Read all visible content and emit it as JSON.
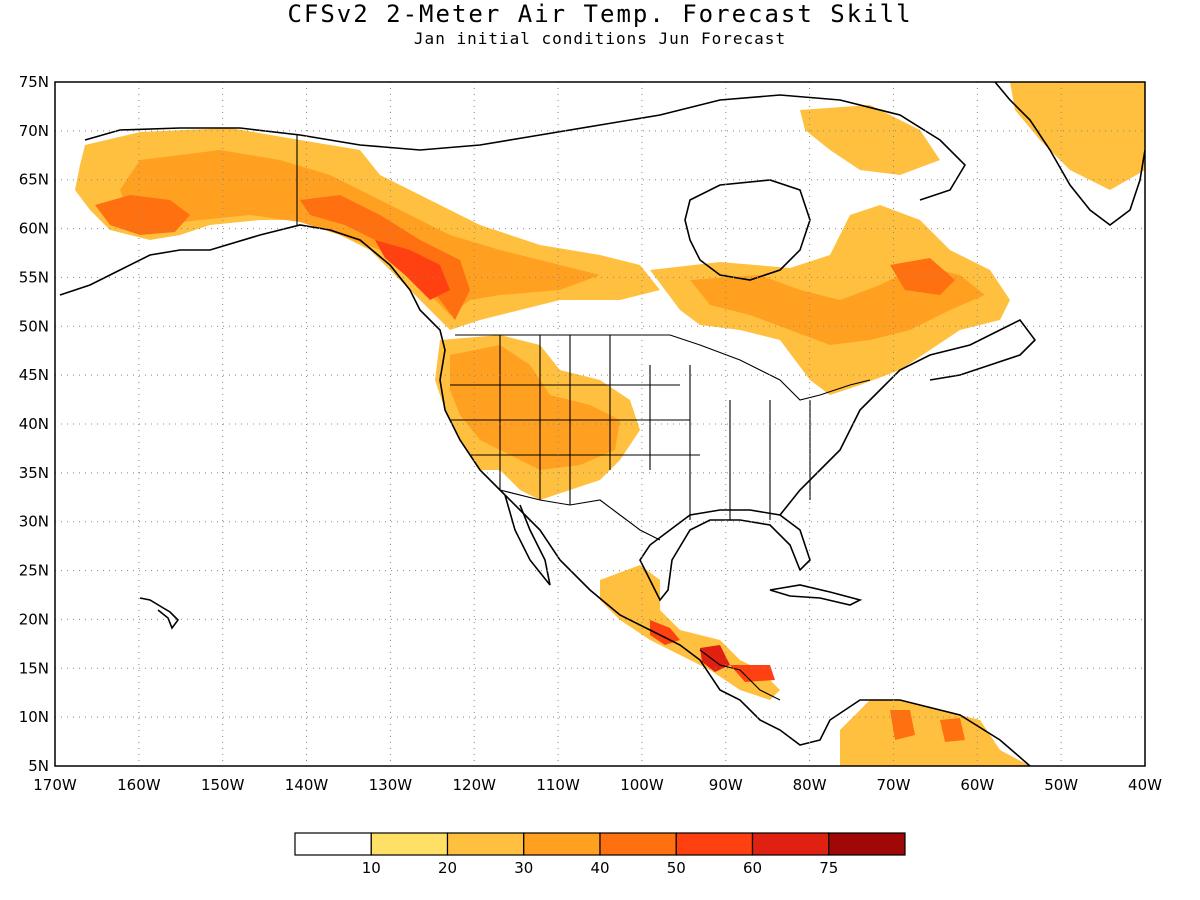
{
  "title": "CFSv2 2-Meter Air Temp. Forecast Skill",
  "subtitle": "Jan initial conditions   Jun Forecast",
  "map": {
    "lon_range": [
      -170,
      -40
    ],
    "lat_range": [
      5,
      75
    ],
    "grid": true,
    "lat_ticks": [
      "75N",
      "70N",
      "65N",
      "60N",
      "55N",
      "50N",
      "45N",
      "40N",
      "35N",
      "30N",
      "25N",
      "20N",
      "15N",
      "10N",
      "5N"
    ],
    "lon_ticks": [
      "170W",
      "160W",
      "150W",
      "140W",
      "130W",
      "120W",
      "110W",
      "100W",
      "90W",
      "80W",
      "70W",
      "60W",
      "50W",
      "40W"
    ]
  },
  "colorbar": {
    "colors": [
      "#ffffff",
      "#ffe066",
      "#ffc040",
      "#ffa020",
      "#ff7010",
      "#ff4010",
      "#e02010",
      "#a00808"
    ],
    "labels": [
      "10",
      "20",
      "30",
      "40",
      "50",
      "60",
      "75"
    ]
  }
}
